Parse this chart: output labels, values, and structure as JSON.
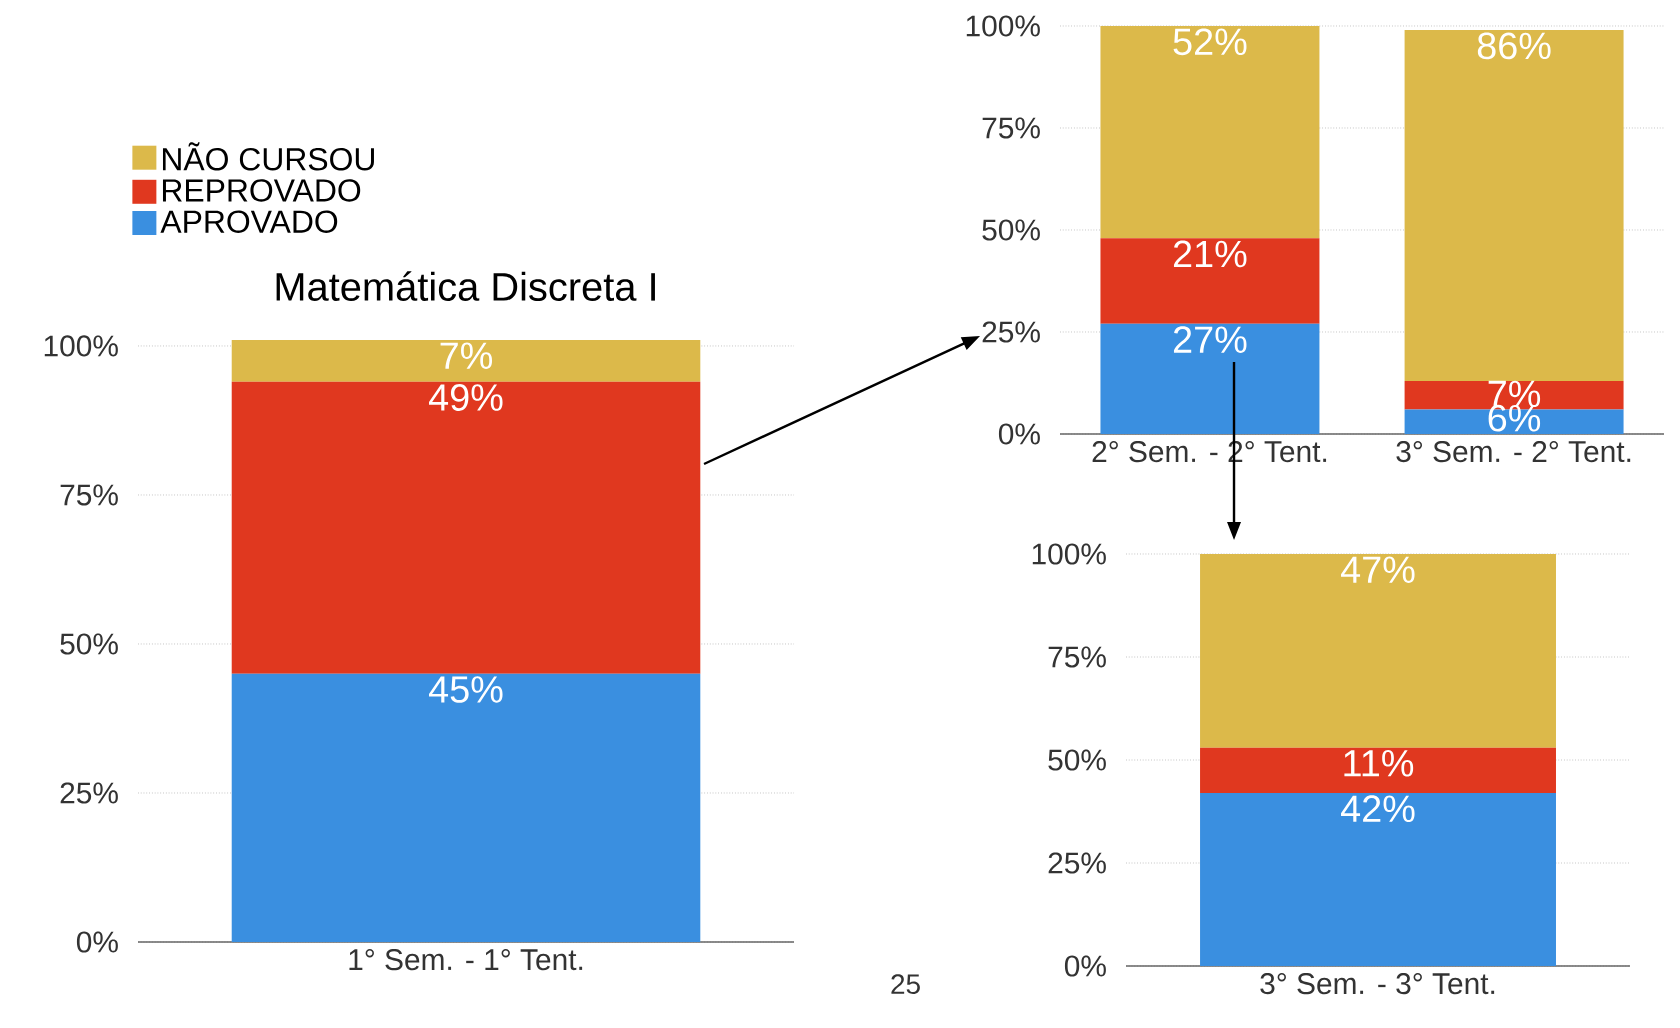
{
  "chart_data": [
    {
      "type": "bar",
      "stacked": true,
      "title": "Matemática Discreta I",
      "categories": [
        "1° Sem. - 1° Tent."
      ],
      "ylim": [
        0,
        101
      ],
      "yticks": [
        {
          "value": 0,
          "label": "0%"
        },
        {
          "value": 25,
          "label": "25%"
        },
        {
          "value": 50,
          "label": "50%"
        },
        {
          "value": 75,
          "label": "75%"
        },
        {
          "value": 100,
          "label": "100%"
        }
      ],
      "grid": "y",
      "legend": "top left",
      "annotations": [
        "25"
      ],
      "series": [
        {
          "name": "APROVADO",
          "color": "#3a8fe0",
          "values": [
            45
          ],
          "value_labels": [
            "45%"
          ]
        },
        {
          "name": "REPROVADO",
          "color": "#e0381f",
          "values": [
            49
          ],
          "value_labels": [
            "49%"
          ]
        },
        {
          "name": "NÃO CURSOU",
          "color": "#dcb94a",
          "values": [
            7
          ],
          "value_labels": [
            "7%"
          ]
        }
      ]
    },
    {
      "type": "bar",
      "stacked": true,
      "categories": [
        "2° Sem. - 2° Tent.",
        "3° Sem. - 2° Tent."
      ],
      "ylim": [
        0,
        100
      ],
      "yticks": [
        {
          "value": 0,
          "label": "0%"
        },
        {
          "value": 25,
          "label": "25%"
        },
        {
          "value": 50,
          "label": "50%"
        },
        {
          "value": 75,
          "label": "75%"
        },
        {
          "value": 100,
          "label": "100%"
        }
      ],
      "grid": "y",
      "series": [
        {
          "color": "#3a8fe0",
          "values": [
            27,
            6
          ],
          "value_labels": [
            "27%",
            "6%"
          ]
        },
        {
          "color": "#e0381f",
          "values": [
            21,
            7
          ],
          "value_labels": [
            "21%",
            "7%"
          ]
        },
        {
          "color": "#dcb94a",
          "values": [
            52,
            86
          ],
          "value_labels": [
            "52%",
            "86%"
          ]
        }
      ]
    },
    {
      "type": "bar",
      "stacked": true,
      "categories": [
        "3° Sem. - 3° Tent."
      ],
      "ylim": [
        0,
        100
      ],
      "yticks": [
        {
          "value": 0,
          "label": "0%"
        },
        {
          "value": 25,
          "label": "25%"
        },
        {
          "value": 50,
          "label": "50%"
        },
        {
          "value": 75,
          "label": "75%"
        },
        {
          "value": 100,
          "label": "100%"
        }
      ],
      "grid": "y",
      "series": [
        {
          "color": "#3a8fe0",
          "values": [
            42
          ],
          "value_labels": [
            "42%"
          ]
        },
        {
          "color": "#e0381f",
          "values": [
            11
          ],
          "value_labels": [
            "11%"
          ]
        },
        {
          "color": "#dcb94a",
          "values": [
            47
          ],
          "value_labels": [
            "47%"
          ]
        }
      ]
    }
  ]
}
